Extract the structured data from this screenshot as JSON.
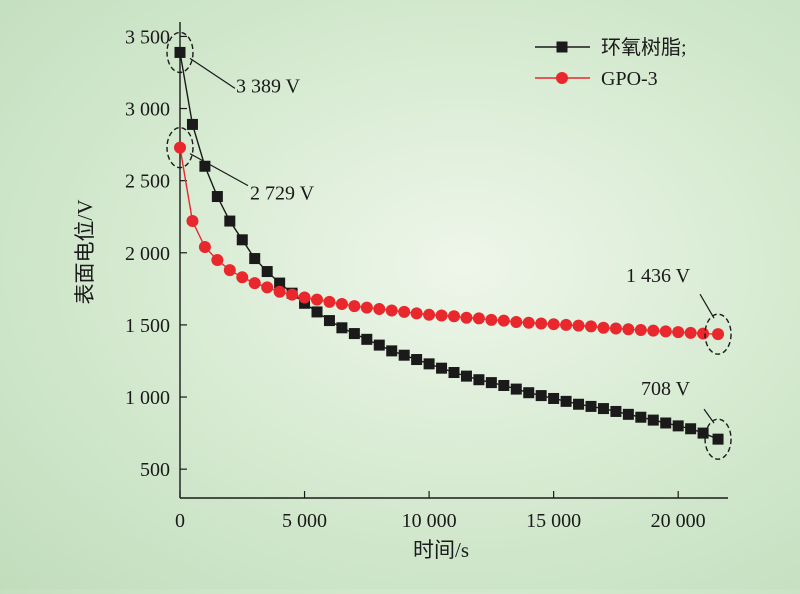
{
  "chart_data": {
    "type": "line",
    "xlabel": "时间/s",
    "ylabel": "表面电位/V",
    "xlim": [
      0,
      22000
    ],
    "ylim": [
      300,
      3600
    ],
    "x_ticks": [
      0,
      5000,
      10000,
      15000,
      20000
    ],
    "x_tick_labels": [
      "0",
      "5 000",
      "10 000",
      "15 000",
      "20 000"
    ],
    "y_ticks": [
      500,
      1000,
      1500,
      2000,
      2500,
      3000,
      3500
    ],
    "y_tick_labels": [
      "500",
      "1 000",
      "1 500",
      "2 000",
      "2 500",
      "3 000",
      "3 500"
    ],
    "legend_position": "top-right",
    "series": [
      {
        "name": "环氧树脂;",
        "color": "#1a1a1a",
        "marker": "square",
        "x": [
          0,
          500,
          1000,
          1500,
          2000,
          2500,
          3000,
          3500,
          4000,
          4500,
          5000,
          5500,
          6000,
          6500,
          7000,
          7500,
          8000,
          8500,
          9000,
          9500,
          10000,
          10500,
          11000,
          11500,
          12000,
          12500,
          13000,
          13500,
          14000,
          14500,
          15000,
          15500,
          16000,
          16500,
          17000,
          17500,
          18000,
          18500,
          19000,
          19500,
          20000,
          20500,
          21000,
          21600
        ],
        "y": [
          3389,
          2890,
          2600,
          2390,
          2220,
          2090,
          1960,
          1870,
          1790,
          1720,
          1650,
          1590,
          1530,
          1480,
          1440,
          1400,
          1360,
          1320,
          1290,
          1260,
          1230,
          1200,
          1170,
          1145,
          1120,
          1100,
          1080,
          1055,
          1030,
          1010,
          990,
          970,
          950,
          935,
          920,
          900,
          880,
          860,
          840,
          820,
          800,
          780,
          750,
          708
        ]
      },
      {
        "name": "GPO-3",
        "color": "#e8282c",
        "marker": "circle",
        "x": [
          0,
          500,
          1000,
          1500,
          2000,
          2500,
          3000,
          3500,
          4000,
          4500,
          5000,
          5500,
          6000,
          6500,
          7000,
          7500,
          8000,
          8500,
          9000,
          9500,
          10000,
          10500,
          11000,
          11500,
          12000,
          12500,
          13000,
          13500,
          14000,
          14500,
          15000,
          15500,
          16000,
          16500,
          17000,
          17500,
          18000,
          18500,
          19000,
          19500,
          20000,
          20500,
          21000,
          21600
        ],
        "y": [
          2729,
          2220,
          2040,
          1950,
          1880,
          1830,
          1790,
          1760,
          1730,
          1710,
          1690,
          1675,
          1660,
          1645,
          1630,
          1620,
          1610,
          1600,
          1590,
          1580,
          1570,
          1565,
          1560,
          1550,
          1545,
          1535,
          1530,
          1520,
          1515,
          1510,
          1505,
          1500,
          1495,
          1490,
          1480,
          1475,
          1470,
          1465,
          1460,
          1455,
          1450,
          1445,
          1440,
          1436
        ]
      }
    ],
    "annotations": [
      {
        "text": "3 389 V",
        "series": 0,
        "point_index": 0
      },
      {
        "text": "2 729 V",
        "series": 1,
        "point_index": 0
      },
      {
        "text": "1 436 V",
        "series": 1,
        "point_index": 43
      },
      {
        "text": "708 V",
        "series": 0,
        "point_index": 43
      }
    ]
  }
}
